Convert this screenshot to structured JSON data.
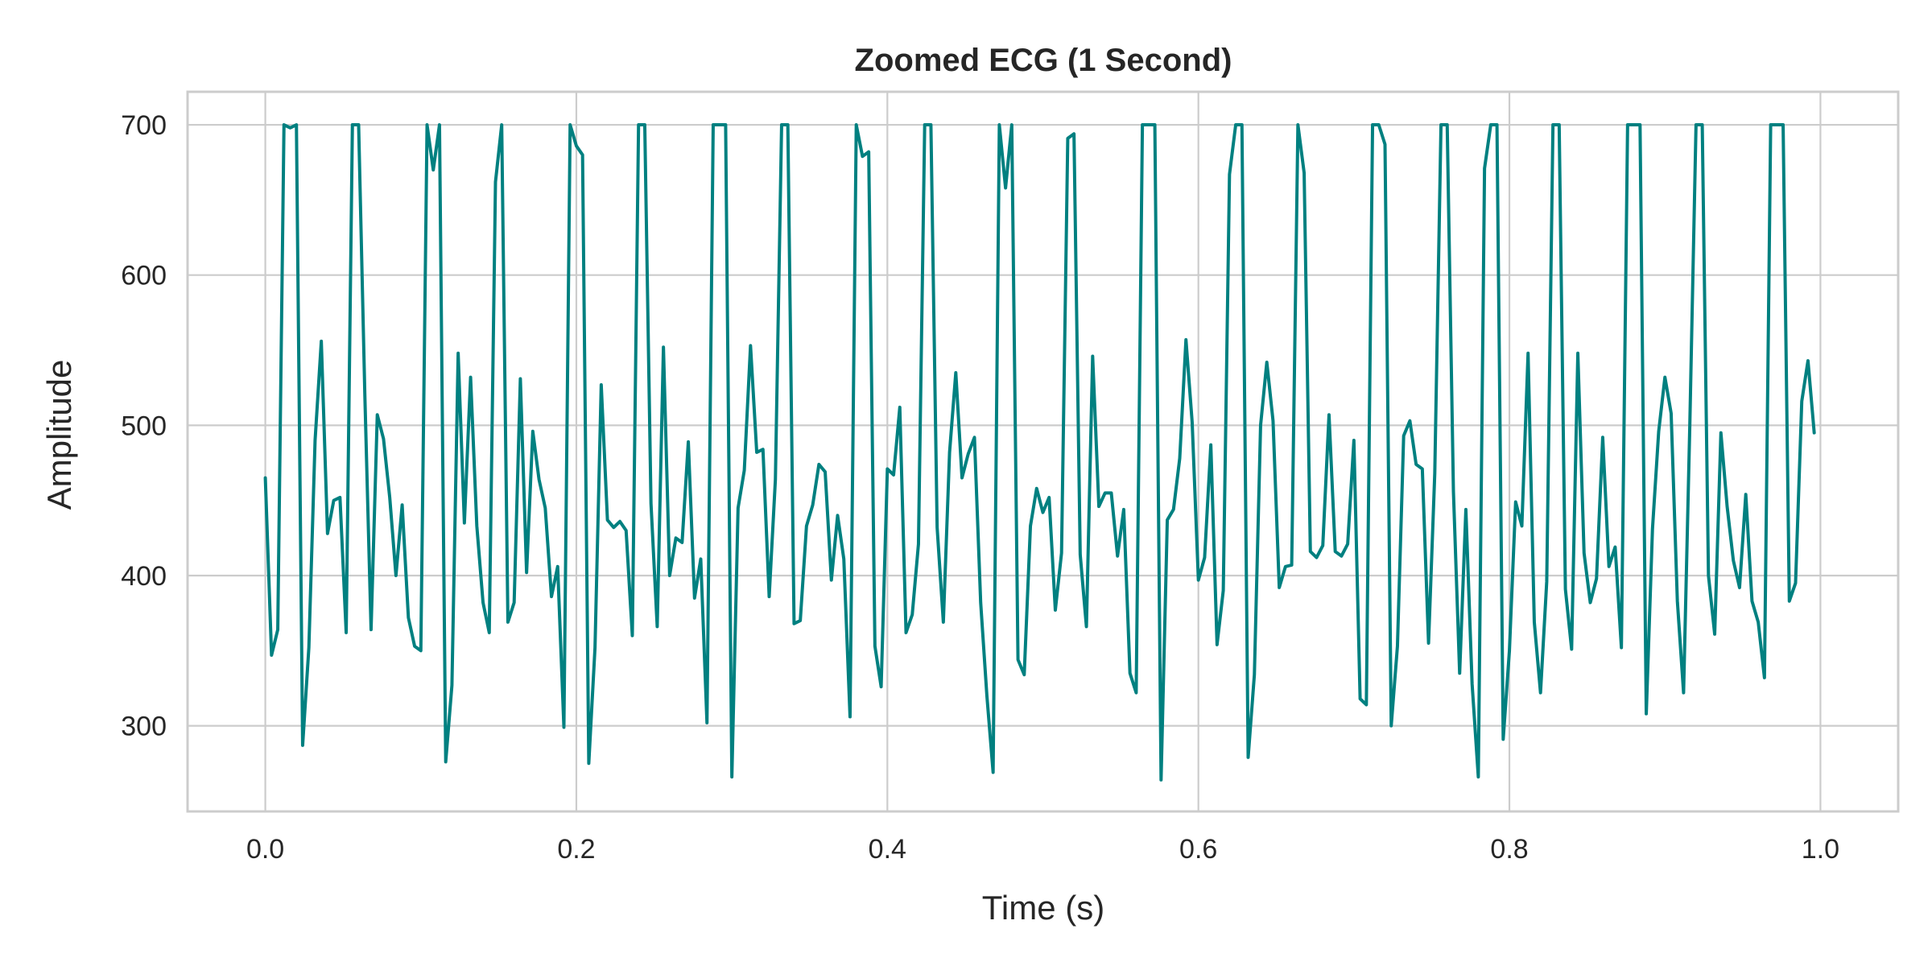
{
  "chart_data": {
    "type": "line",
    "title": "Zoomed ECG (1 Second)",
    "xlabel": "Time (s)",
    "ylabel": "Amplitude",
    "xlim": [
      -0.05,
      1.05
    ],
    "ylim": [
      243,
      722
    ],
    "grid": true,
    "x_ticks": [
      0.0,
      0.2,
      0.4,
      0.6,
      0.8,
      1.0
    ],
    "x_tick_labels": [
      "0.0",
      "0.2",
      "0.4",
      "0.6",
      "0.8",
      "1.0"
    ],
    "y_ticks": [
      300,
      400,
      500,
      600,
      700
    ],
    "y_tick_labels": [
      "300",
      "400",
      "500",
      "600",
      "700"
    ],
    "color": "#008080",
    "series": [
      {
        "x_start": 0.0,
        "x_step": 0.004,
        "values": [
          465,
          347,
          364,
          700,
          698,
          700,
          287,
          352,
          490,
          556,
          428,
          450,
          452,
          362,
          700,
          700,
          520,
          364,
          507,
          491,
          452,
          400,
          447,
          372,
          353,
          350,
          700,
          670,
          700,
          276,
          327,
          548,
          435,
          532,
          433,
          382,
          362,
          662,
          700,
          369,
          382,
          531,
          402,
          496,
          464,
          445,
          386,
          406,
          299,
          700,
          686,
          680,
          275,
          352,
          527,
          437,
          432,
          436,
          430,
          360,
          700,
          700,
          448,
          366,
          552,
          400,
          425,
          422,
          489,
          385,
          411,
          302,
          700,
          700,
          700,
          266,
          445,
          470,
          553,
          482,
          484,
          386,
          464,
          700,
          700,
          368,
          370,
          433,
          447,
          474,
          469,
          397,
          440,
          411,
          306,
          700,
          679,
          682,
          353,
          326,
          471,
          467,
          512,
          362,
          374,
          421,
          700,
          700,
          432,
          369,
          482,
          535,
          465,
          481,
          492,
          382,
          320,
          269,
          700,
          658,
          700,
          344,
          334,
          433,
          458,
          442,
          452,
          377,
          415,
          691,
          694,
          414,
          366,
          546,
          446,
          455,
          455,
          413,
          444,
          335,
          322,
          700,
          700,
          700,
          264,
          437,
          444,
          478,
          557,
          502,
          397,
          412,
          487,
          354,
          390,
          667,
          700,
          700,
          279,
          334,
          500,
          542,
          503,
          392,
          406,
          407,
          700,
          668,
          416,
          412,
          420,
          507,
          416,
          413,
          421,
          490,
          318,
          314,
          700,
          700,
          687,
          300,
          353,
          493,
          503,
          474,
          471,
          355,
          468,
          700,
          700,
          456,
          335,
          444,
          328,
          266,
          671,
          700,
          700,
          291,
          350,
          449,
          433,
          548,
          369,
          322,
          396,
          700,
          700,
          391,
          351,
          548,
          415,
          382,
          398,
          492,
          406,
          419,
          352,
          700,
          700,
          700,
          308,
          431,
          496,
          532,
          508,
          383,
          322,
          500,
          700,
          700,
          400,
          361,
          495,
          446,
          410,
          392,
          454,
          383,
          369,
          332,
          700,
          700,
          700,
          383,
          395,
          516,
          543,
          495
        ]
      }
    ]
  }
}
